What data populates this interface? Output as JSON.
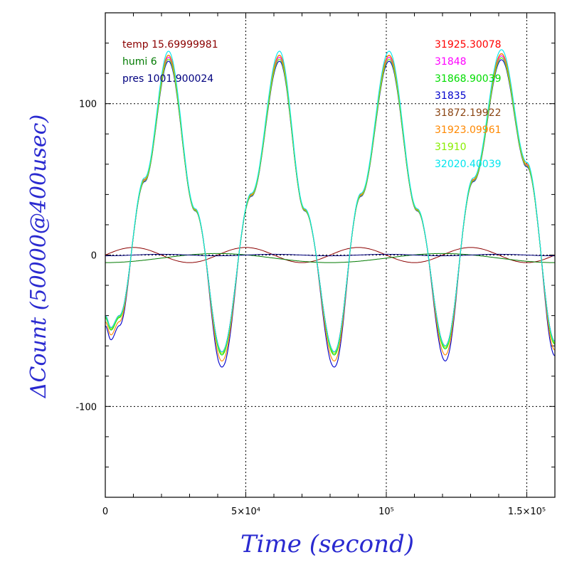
{
  "chart_data": {
    "type": "line",
    "xlabel": "Time (second)",
    "ylabel": "ΔCount (50000@400usec)",
    "xlim": [
      0,
      160000
    ],
    "ylim": [
      -160,
      160
    ],
    "grid": true,
    "x_ticks": [
      {
        "value": 0,
        "label": "0"
      },
      {
        "value": 50000,
        "label": "5×10⁴"
      },
      {
        "value": 100000,
        "label": "10⁵"
      },
      {
        "value": 150000,
        "label": "1.5×10⁵"
      }
    ],
    "y_ticks": [
      {
        "value": -100,
        "label": "-100"
      },
      {
        "value": 0,
        "label": "0"
      },
      {
        "value": 100,
        "label": "100"
      }
    ],
    "env_legend": [
      {
        "label": "temp 15.69999981",
        "color": "#8b0000"
      },
      {
        "label": "humi 6",
        "color": "#007a00"
      },
      {
        "label": "pres 1001.900024",
        "color": "#00007f"
      }
    ],
    "series_legend": [
      {
        "label": "31925.30078",
        "color": "#ff0000"
      },
      {
        "label": "31848",
        "color": "#ff00ff"
      },
      {
        "label": "31868.90039",
        "color": "#00dd00"
      },
      {
        "label": "31835",
        "color": "#0000cc"
      },
      {
        "label": "31872.19922",
        "color": "#8b4513"
      },
      {
        "label": "31923.09961",
        "color": "#ff8800"
      },
      {
        "label": "31910",
        "color": "#88ee00"
      },
      {
        "label": "32020.40039",
        "color": "#00e5ee"
      }
    ],
    "main_wave": {
      "description_points_x": [
        0,
        2000,
        5000,
        14000,
        22500,
        32000,
        41500,
        52000,
        62000,
        71000,
        81500,
        91000,
        101000,
        111000,
        121000,
        131000,
        141000,
        150000,
        160000
      ],
      "description_points_y": [
        -40,
        -48,
        -40,
        50,
        132,
        30,
        -64,
        40,
        132,
        30,
        -64,
        40,
        132,
        30,
        -60,
        50,
        133,
        60,
        -57
      ]
    },
    "series": [
      {
        "name": "31925.30078",
        "color": "#ff0000",
        "amp_scale": 1.0,
        "min_offset": 0
      },
      {
        "name": "31848",
        "color": "#ff00ff",
        "amp_scale": 0.99,
        "min_offset": 0
      },
      {
        "name": "31868.90039",
        "color": "#00dd00",
        "amp_scale": 0.98,
        "min_offset": -2
      },
      {
        "name": "31835",
        "color": "#0000cc",
        "amp_scale": 0.97,
        "min_offset": -10
      },
      {
        "name": "31872.19922",
        "color": "#8b4513",
        "amp_scale": 1.0,
        "min_offset": 0
      },
      {
        "name": "31923.09961",
        "color": "#ff8800",
        "amp_scale": 1.0,
        "min_offset": -6
      },
      {
        "name": "31910",
        "color": "#88ee00",
        "amp_scale": 0.98,
        "min_offset": -1
      },
      {
        "name": "32020.40039",
        "color": "#00e5ee",
        "amp_scale": 1.02,
        "min_offset": 0
      }
    ],
    "env_series": [
      {
        "name": "temp 15.69999981",
        "color": "#8b0000",
        "amplitude": 5,
        "period": 40000,
        "phase": 0,
        "offset": 0
      },
      {
        "name": "humi 6",
        "color": "#007a00",
        "amplitude": 3,
        "period": 80000,
        "phase": 20000,
        "offset": -2
      },
      {
        "name": "pres 1001.900024",
        "color": "#00007f",
        "amplitude": 0.5,
        "period": 40000,
        "phase": 10000,
        "offset": 0
      }
    ]
  }
}
